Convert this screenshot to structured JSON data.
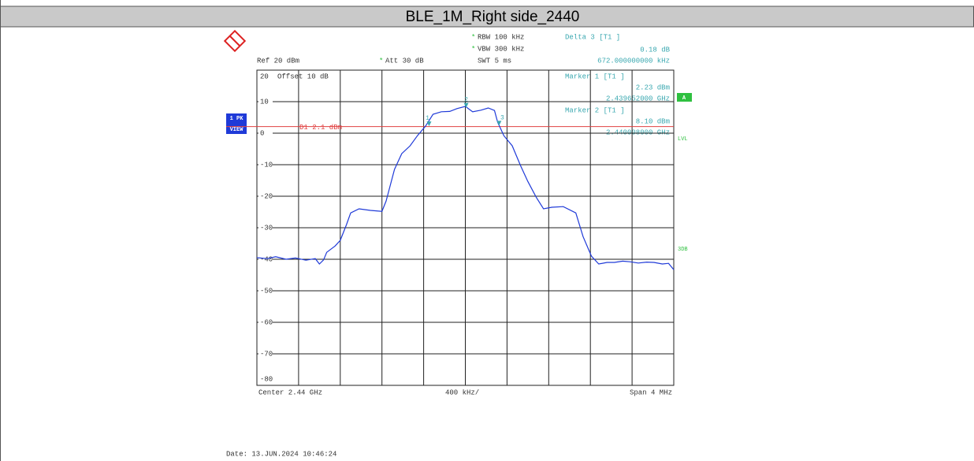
{
  "chart_data": {
    "type": "line",
    "title": "BLE_1M_Right side_2440",
    "x": [
      2438.0,
      2438.1,
      2438.18,
      2438.28,
      2438.37,
      2438.47,
      2438.56,
      2438.6,
      2438.64,
      2438.67,
      2438.75,
      2438.8,
      2438.86,
      2438.9,
      2438.98,
      2439.09,
      2439.2,
      2439.24,
      2439.32,
      2439.39,
      2439.47,
      2439.54,
      2439.62,
      2439.69,
      2439.77,
      2439.85,
      2439.92,
      2440.0,
      2440.07,
      2440.15,
      2440.22,
      2440.28,
      2440.31,
      2440.37,
      2440.45,
      2440.53,
      2440.6,
      2440.68,
      2440.75,
      2440.83,
      2440.94,
      2441.06,
      2441.13,
      2441.21,
      2441.28,
      2441.36,
      2441.43,
      2441.51,
      2441.58,
      2441.66,
      2441.74,
      2441.81,
      2441.89,
      2441.95,
      2442.0
    ],
    "series": [
      {
        "color": "#1f3ad8",
        "values": [
          -39.5,
          -39.8,
          -39.2,
          -40.0,
          -39.6,
          -40.3,
          -39.8,
          -41.5,
          -40.2,
          -37.8,
          -35.8,
          -34.0,
          -29.0,
          -25.3,
          -24.0,
          -24.5,
          -24.8,
          -21.5,
          -11.5,
          -6.5,
          -4.0,
          -0.8,
          2.3,
          6.0,
          6.8,
          6.9,
          7.8,
          8.5,
          6.8,
          7.3,
          8.0,
          7.2,
          3.5,
          -0.8,
          -4.0,
          -10.3,
          -15.3,
          -20.3,
          -24.0,
          -23.5,
          -23.3,
          -25.3,
          -32.8,
          -39.0,
          -41.5,
          -41.0,
          -41.0,
          -40.6,
          -40.8,
          -41.2,
          -40.9,
          -41.0,
          -41.5,
          -41.3,
          -43.3
        ]
      }
    ],
    "xlim": [
      2438,
      2442
    ],
    "xticks": [
      2438,
      2438.4,
      2438.8,
      2439.2,
      2439.6,
      2440,
      2440.4,
      2440.8,
      2441.2,
      2441.6,
      2442
    ],
    "ylim": [
      -80,
      20
    ],
    "yticks": [
      20,
      10,
      0,
      -10,
      -20,
      -30,
      -40,
      -50,
      -60,
      -70,
      -80
    ],
    "grid": true,
    "display_line": {
      "label": "D1 2.1 dBm",
      "value": 2.1,
      "color": "#e04040"
    },
    "markers": [
      {
        "label": "1",
        "x": 2439.652,
        "y": 2.23
      },
      {
        "label": "2",
        "x": 2440.008,
        "y": 8.1
      },
      {
        "label": "3",
        "x": 2440.324,
        "y": 2.41
      }
    ],
    "annotations": {
      "star": "*",
      "rbw": "RBW 100 kHz",
      "vbw": "VBW 300 kHz",
      "swt": "SWT 5 ms",
      "ref": "Ref  20 dBm",
      "att": "Att  30 dB",
      "offset": "Offset  10 dB",
      "delta_title": "Delta 3 [T1 ]",
      "delta_level": "0.18 dB",
      "delta_freq": "672.000000000 kHz",
      "m1_title": "Marker 1 [T1 ]",
      "m1_level": "2.23 dBm",
      "m1_freq": "2.439652000 GHz",
      "m2_title": "Marker 2 [T1 ]",
      "m2_level": "8.10 dBm",
      "m2_freq": "2.440008000 GHz",
      "trace_1": "1 PK",
      "trace_2": "VIEW",
      "a": "A",
      "lvl": "LVL",
      "db3": "3DB",
      "center": "Center  2.44 GHz",
      "div": "400 kHz/",
      "span": "Span  4 MHz",
      "date": "Date: 13.JUN.2024  10:46:24"
    }
  }
}
